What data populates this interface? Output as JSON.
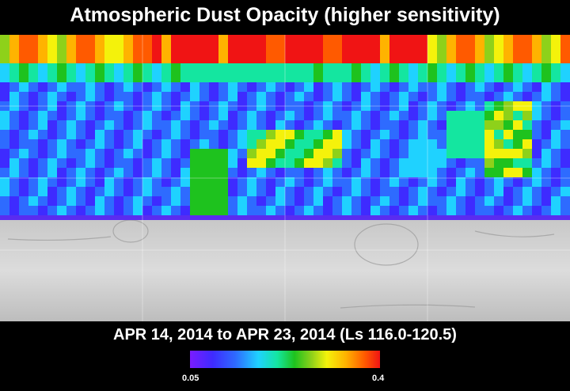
{
  "title": "Atmospheric Dust Opacity (higher sensitivity)",
  "date_range": "APR 14, 2014 to APR 23, 2014 (Ls 116.0-120.5)",
  "colorbar": {
    "min_label": "0.05",
    "max_label": "0.4",
    "min": 0.05,
    "max": 0.4,
    "colors": [
      "#7a1cff",
      "#3e2bff",
      "#2e6bff",
      "#1fd2ff",
      "#14e6a0",
      "#1ec21e",
      "#8ed11a",
      "#f4f20b",
      "#ffb300",
      "#ff5a00",
      "#f01414"
    ]
  },
  "map": {
    "projection": "simple cylindrical",
    "grid": true,
    "grid_columns": 4,
    "grid_rows": 3,
    "coverage": "northern hemisphere; southern hemisphere shown as gray shaded relief",
    "high_opacity_regions": [
      "northern polar band (highest values, red/orange)",
      "mid-latitude band with cyan/green patches near center",
      "eastern column of green/yellow patches"
    ]
  }
}
